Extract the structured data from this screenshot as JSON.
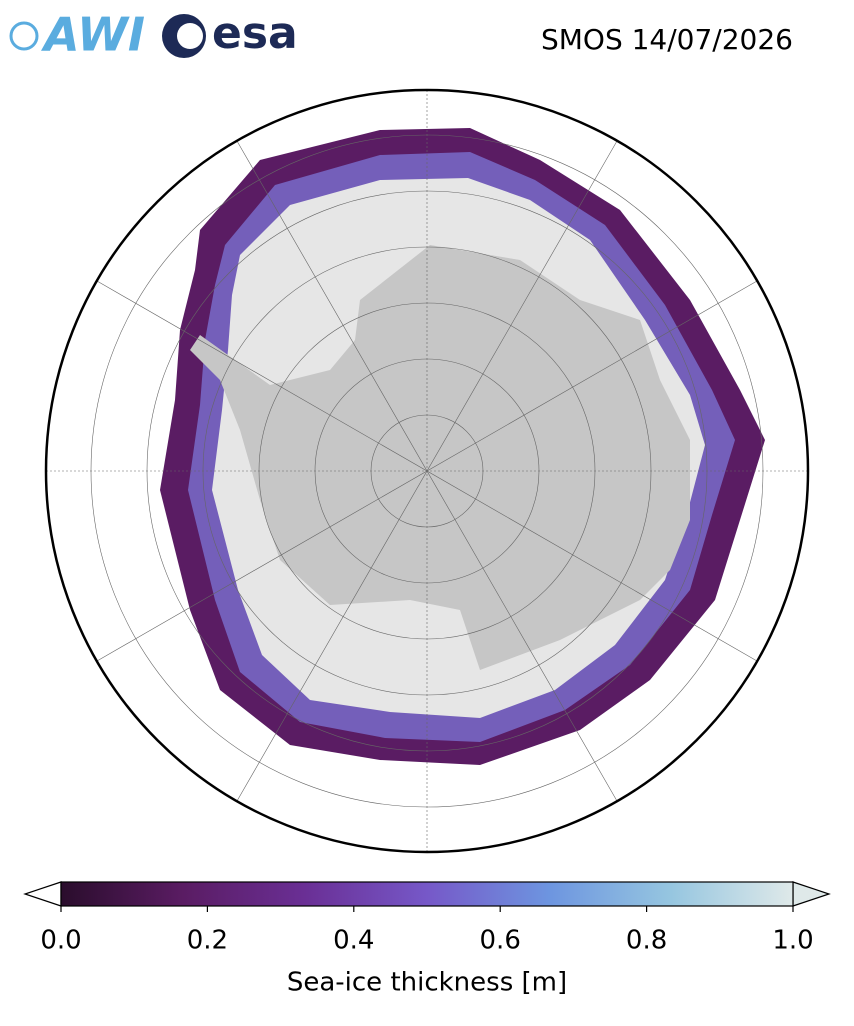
{
  "logos": {
    "awi": "AWI",
    "esa": "esa"
  },
  "title": "SMOS 14/07/2026",
  "colorbar": {
    "label": "Sea-ice thickness [m]",
    "lim": [
      0,
      1
    ],
    "ticks": [
      {
        "value": 0,
        "label": "0.0"
      },
      {
        "value": 0.2,
        "label": "0.2"
      },
      {
        "value": 0.4,
        "label": "0.4"
      },
      {
        "value": 0.6,
        "label": "0.6"
      },
      {
        "value": 0.8,
        "label": "0.8"
      },
      {
        "value": 1,
        "label": "1.0"
      }
    ],
    "colors": [
      "#2a0d2c",
      "#5a1c63",
      "#6a2f95",
      "#7658c8",
      "#6d95e0",
      "#96c6e0",
      "#dfe9e9"
    ]
  }
}
